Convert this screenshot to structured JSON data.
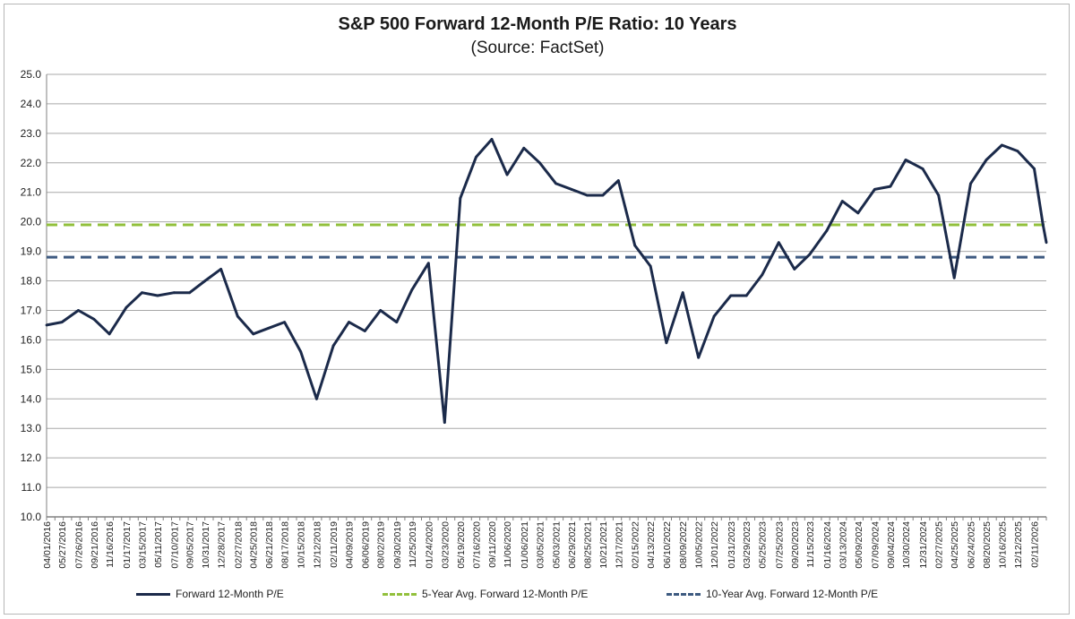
{
  "chart_data": {
    "type": "line",
    "title": "S&P 500 Forward 12-Month P/E Ratio: 10 Years",
    "subtitle": "(Source: FactSet)",
    "ylim": [
      10.0,
      25.0
    ],
    "yticks": [
      "10.0",
      "11.0",
      "12.0",
      "13.0",
      "14.0",
      "15.0",
      "16.0",
      "17.0",
      "18.0",
      "19.0",
      "20.0",
      "21.0",
      "22.0",
      "23.0",
      "24.0",
      "25.0"
    ],
    "xtick_labels": [
      "04/01/2016",
      "05/27/2016",
      "07/26/2016",
      "09/21/2016",
      "11/16/2016",
      "01/17/2017",
      "03/15/2017",
      "05/11/2017",
      "07/10/2017",
      "09/05/2017",
      "10/31/2017",
      "12/28/2017",
      "02/27/2018",
      "04/25/2018",
      "06/21/2018",
      "08/17/2018",
      "10/15/2018",
      "12/12/2018",
      "02/11/2019",
      "04/09/2019",
      "06/06/2019",
      "08/02/2019",
      "09/30/2019",
      "11/25/2019",
      "01/24/2020",
      "03/23/2020",
      "05/19/2020",
      "07/16/2020",
      "09/11/2020",
      "11/06/2020",
      "01/06/2021",
      "03/05/2021",
      "05/03/2021",
      "06/29/2021",
      "08/25/2021",
      "10/21/2021",
      "12/17/2021",
      "02/15/2022",
      "04/13/2022",
      "06/10/2022",
      "08/09/2022",
      "10/05/2022",
      "12/01/2022",
      "01/31/2023",
      "03/29/2023",
      "05/25/2023",
      "07/25/2023",
      "09/20/2023",
      "11/15/2023",
      "01/16/2024",
      "03/13/2024",
      "05/09/2024",
      "07/09/2024",
      "09/04/2024",
      "10/30/2024",
      "12/31/2024",
      "02/27/2025",
      "04/25/2025",
      "06/24/2025",
      "08/20/2025",
      "10/16/2025",
      "12/12/2025",
      "02/11/2026"
    ],
    "grid": true,
    "legend_position": "bottom",
    "series": [
      {
        "name": "Forward 12-Month P/E",
        "color": "#1b2a4a",
        "points": [
          [
            "04/01/2016",
            16.5
          ],
          [
            "05/27/2016",
            16.6
          ],
          [
            "07/26/2016",
            17.0
          ],
          [
            "09/21/2016",
            16.7
          ],
          [
            "11/16/2016",
            16.2
          ],
          [
            "01/17/2017",
            17.1
          ],
          [
            "03/15/2017",
            17.6
          ],
          [
            "05/11/2017",
            17.5
          ],
          [
            "07/10/2017",
            17.6
          ],
          [
            "09/05/2017",
            17.6
          ],
          [
            "10/31/2017",
            18.0
          ],
          [
            "12/28/2017",
            18.4
          ],
          [
            "02/27/2018",
            16.8
          ],
          [
            "04/25/2018",
            16.2
          ],
          [
            "06/21/2018",
            16.4
          ],
          [
            "08/17/2018",
            16.6
          ],
          [
            "10/15/2018",
            15.6
          ],
          [
            "12/12/2018",
            14.0
          ],
          [
            "02/11/2019",
            15.8
          ],
          [
            "04/09/2019",
            16.6
          ],
          [
            "06/06/2019",
            16.3
          ],
          [
            "08/02/2019",
            17.0
          ],
          [
            "09/30/2019",
            16.6
          ],
          [
            "11/25/2019",
            17.7
          ],
          [
            "01/24/2020",
            18.6
          ],
          [
            "03/23/2020",
            13.2
          ],
          [
            "05/19/2020",
            20.8
          ],
          [
            "07/16/2020",
            22.2
          ],
          [
            "09/11/2020",
            22.8
          ],
          [
            "11/06/2020",
            21.6
          ],
          [
            "01/06/2021",
            22.5
          ],
          [
            "03/05/2021",
            22.0
          ],
          [
            "05/03/2021",
            21.3
          ],
          [
            "06/29/2021",
            21.1
          ],
          [
            "08/25/2021",
            20.9
          ],
          [
            "10/21/2021",
            20.9
          ],
          [
            "12/17/2021",
            21.4
          ],
          [
            "02/15/2022",
            19.2
          ],
          [
            "04/13/2022",
            18.5
          ],
          [
            "06/10/2022",
            15.9
          ],
          [
            "08/09/2022",
            17.6
          ],
          [
            "10/05/2022",
            15.4
          ],
          [
            "12/01/2022",
            16.8
          ],
          [
            "01/31/2023",
            17.5
          ],
          [
            "03/29/2023",
            17.5
          ],
          [
            "05/25/2023",
            18.2
          ],
          [
            "07/25/2023",
            19.3
          ],
          [
            "09/20/2023",
            18.4
          ],
          [
            "11/15/2023",
            18.9
          ],
          [
            "01/16/2024",
            19.7
          ],
          [
            "03/13/2024",
            20.7
          ],
          [
            "05/09/2024",
            20.3
          ],
          [
            "07/09/2024",
            21.1
          ],
          [
            "09/04/2024",
            21.2
          ],
          [
            "10/30/2024",
            22.1
          ],
          [
            "12/31/2024",
            21.8
          ],
          [
            "02/27/2025",
            20.9
          ],
          [
            "04/25/2025",
            18.1
          ],
          [
            "06/24/2025",
            21.3
          ],
          [
            "08/20/2025",
            22.1
          ],
          [
            "10/16/2025",
            22.6
          ],
          [
            "12/12/2025",
            22.4
          ],
          [
            "02/11/2026",
            21.8
          ],
          [
            "03/15/2026",
            19.9
          ],
          [
            "03/27/2026",
            19.3
          ]
        ]
      },
      {
        "name": "5-Year Avg. Forward 12-Month P/E",
        "color": "#92c03c",
        "value": 19.9
      },
      {
        "name": "10-Year Avg. Forward 12-Month P/E",
        "color": "#3d5a80",
        "value": 18.8
      }
    ]
  }
}
